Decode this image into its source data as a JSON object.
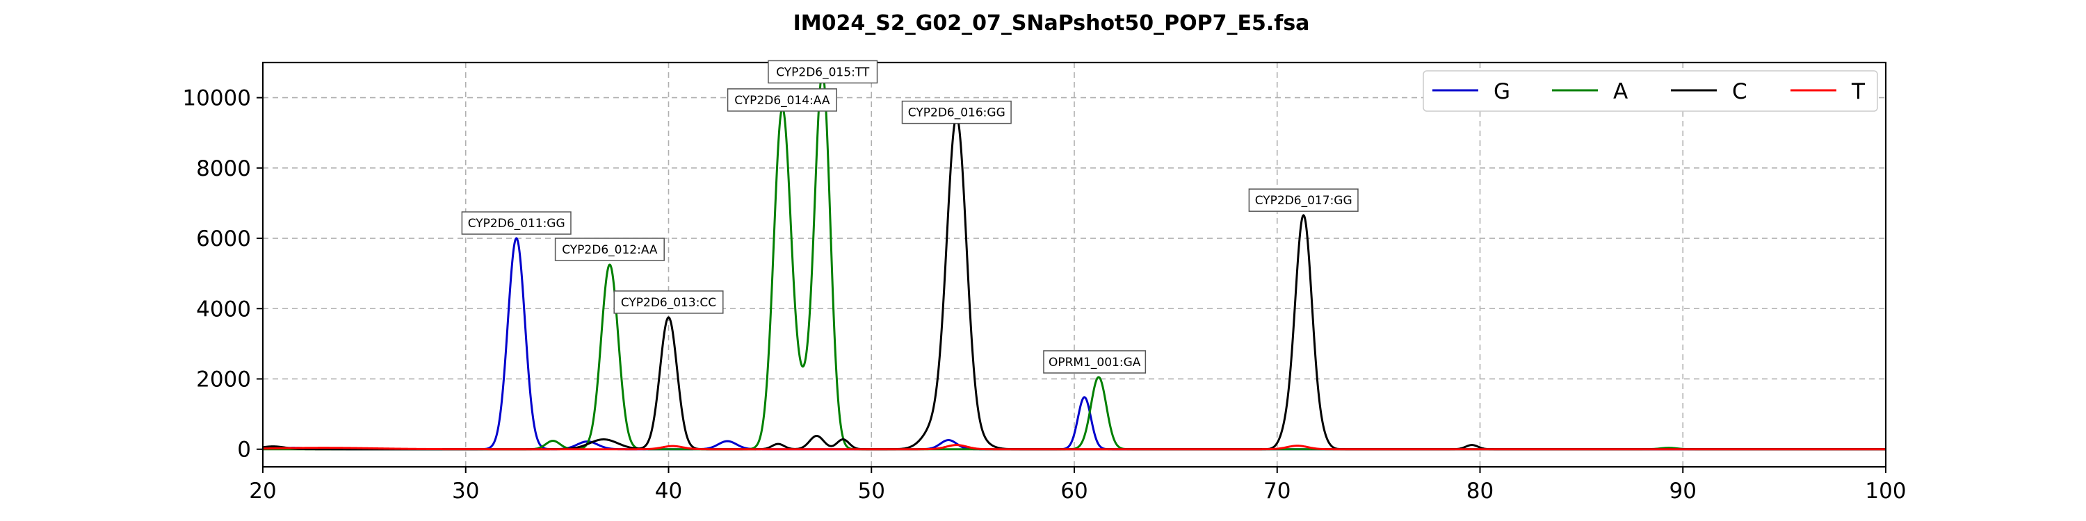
{
  "chart_data": {
    "type": "line",
    "title": "IM024_S2_G02_07_SNaPshot50_POP7_E5.fsa",
    "xlabel": "",
    "ylabel": "",
    "xlim": [
      20,
      100
    ],
    "ylim": [
      -500,
      11000
    ],
    "xticks": [
      20,
      30,
      40,
      50,
      60,
      70,
      80,
      90,
      100
    ],
    "yticks": [
      0,
      2000,
      4000,
      6000,
      8000,
      10000
    ],
    "grid": true,
    "legend_position": "top-right",
    "series": [
      {
        "name": "G",
        "color": "#0000cc",
        "peaks": [
          [
            32.5,
            6000,
            0.42
          ],
          [
            36.0,
            220,
            0.5
          ],
          [
            42.9,
            230,
            0.45
          ],
          [
            53.8,
            260,
            0.4
          ],
          [
            60.5,
            1480,
            0.32
          ],
          [
            21.5,
            40,
            0.8
          ]
        ]
      },
      {
        "name": "A",
        "color": "#008000",
        "peaks": [
          [
            34.3,
            240,
            0.35
          ],
          [
            37.1,
            5250,
            0.42
          ],
          [
            45.6,
            9500,
            0.42
          ],
          [
            46.7,
            1500,
            0.55
          ],
          [
            47.6,
            10300,
            0.38
          ],
          [
            61.2,
            2050,
            0.38
          ],
          [
            89.3,
            40,
            0.4
          ]
        ]
      },
      {
        "name": "C",
        "color": "#000000",
        "peaks": [
          [
            20.5,
            80,
            0.6
          ],
          [
            36.8,
            280,
            0.7
          ],
          [
            40.0,
            3750,
            0.42
          ],
          [
            45.4,
            150,
            0.3
          ],
          [
            47.3,
            380,
            0.35
          ],
          [
            48.6,
            280,
            0.3
          ],
          [
            53.2,
            650,
            0.6
          ],
          [
            54.2,
            9150,
            0.48
          ],
          [
            55.0,
            350,
            0.6
          ],
          [
            70.4,
            300,
            0.3
          ],
          [
            71.3,
            6650,
            0.42
          ],
          [
            72.2,
            220,
            0.3
          ],
          [
            79.6,
            120,
            0.3
          ]
        ]
      },
      {
        "name": "T",
        "color": "#ff0000",
        "peaks": [
          [
            23.0,
            40,
            2.5
          ],
          [
            40.2,
            90,
            0.5
          ],
          [
            54.2,
            120,
            0.5
          ],
          [
            71.0,
            100,
            0.5
          ]
        ]
      }
    ],
    "annotations": [
      {
        "label": "CYP2D6_011:GG",
        "x": 32.5,
        "y": 6000
      },
      {
        "label": "CYP2D6_012:AA",
        "x": 37.1,
        "y": 5250
      },
      {
        "label": "CYP2D6_013:CC",
        "x": 40.0,
        "y": 3750
      },
      {
        "label": "CYP2D6_014:AA",
        "x": 45.6,
        "y": 9500
      },
      {
        "label": "CYP2D6_015:TT",
        "x": 47.6,
        "y": 10300
      },
      {
        "label": "CYP2D6_016:GG",
        "x": 54.2,
        "y": 9150
      },
      {
        "label": "OPRM1_001:GA",
        "x": 61.0,
        "y": 2050
      },
      {
        "label": "CYP2D6_017:GG",
        "x": 71.3,
        "y": 6650
      }
    ]
  }
}
